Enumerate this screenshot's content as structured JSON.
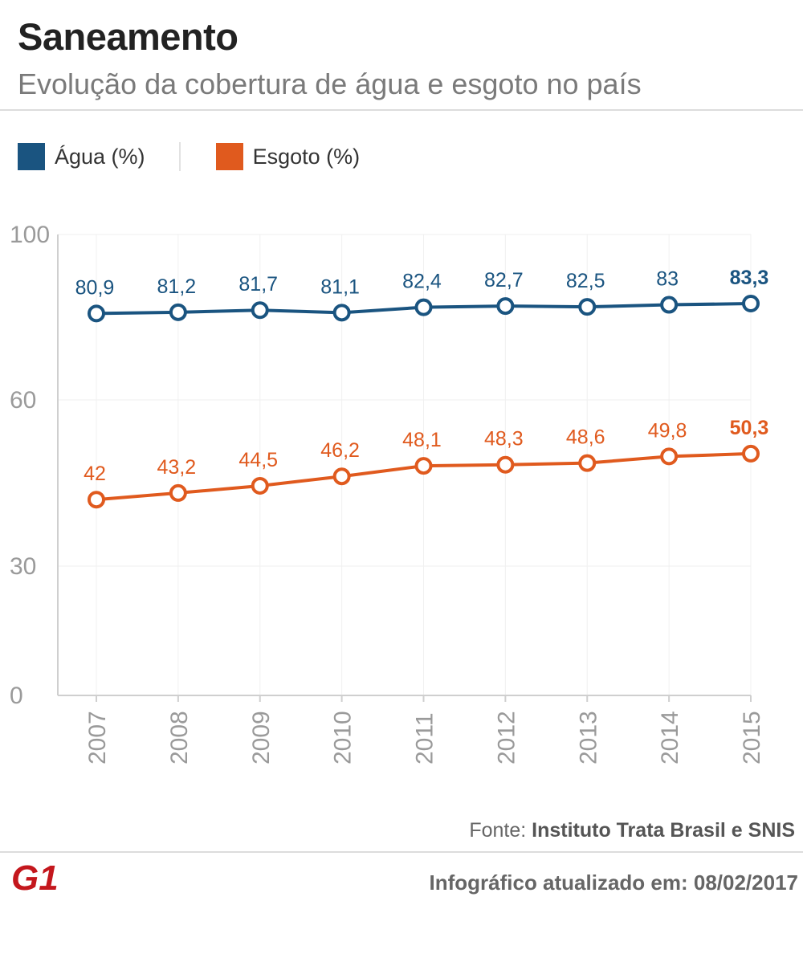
{
  "header": {
    "title": "Saneamento",
    "subtitle": "Evolução da cobertura de água e esgoto no país"
  },
  "legend": [
    {
      "label": "Água (%)",
      "color": "#1a5480"
    },
    {
      "label": "Esgoto (%)",
      "color": "#e05a1e"
    }
  ],
  "footer": {
    "source_prefix": "Fonte: ",
    "source_name": "Instituto Trata Brasil e SNIS",
    "updated": "Infográfico atualizado em: 08/02/2017",
    "logo_text": "G1"
  },
  "chart_data": {
    "type": "line",
    "title": "Saneamento",
    "subtitle": "Evolução da cobertura de água e esgoto no país",
    "categories": [
      "2007",
      "2008",
      "2009",
      "2010",
      "2011",
      "2012",
      "2013",
      "2014",
      "2015"
    ],
    "yticks": [
      "100",
      "60",
      "30",
      "0"
    ],
    "ylim": [
      0,
      100
    ],
    "series": [
      {
        "name": "Água (%)",
        "color": "#1a5480",
        "values": [
          80.9,
          81.2,
          81.7,
          81.1,
          82.4,
          82.7,
          82.5,
          83,
          83.3
        ],
        "labels": [
          "80,9",
          "81,2",
          "81,7",
          "81,1",
          "82,4",
          "82,7",
          "82,5",
          "83",
          "83,3"
        ]
      },
      {
        "name": "Esgoto (%)",
        "color": "#e05a1e",
        "values": [
          42,
          43.2,
          44.5,
          46.2,
          48.1,
          48.3,
          48.6,
          49.8,
          50.3
        ],
        "labels": [
          "42",
          "43,2",
          "44,5",
          "46,2",
          "48,1",
          "48,3",
          "48,6",
          "49,8",
          "50,3"
        ]
      }
    ]
  }
}
